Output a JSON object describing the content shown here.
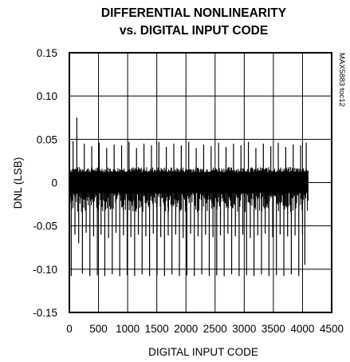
{
  "chart_data": {
    "type": "line",
    "title": "DIFFERENTIAL NONLINEARITY",
    "subtitle": "vs. DIGITAL INPUT CODE",
    "xlabel": "DIGITAL INPUT CODE",
    "ylabel": "DNL (LSB)",
    "figure_id": "MAX5883 toc12",
    "xlim": [
      0,
      4500
    ],
    "ylim": [
      -0.15,
      0.15
    ],
    "x_ticks": [
      0,
      500,
      1000,
      1500,
      2000,
      2500,
      3000,
      3500,
      4000,
      4500
    ],
    "x_tick_labels": [
      "0",
      "500",
      "1000",
      "1500",
      "2000",
      "2500",
      "3000",
      "3500",
      "4000",
      "4500"
    ],
    "y_ticks": [
      0.15,
      0.1,
      0.05,
      0,
      -0.05,
      -0.1,
      -0.15
    ],
    "y_tick_labels": [
      "0.15",
      "0.10",
      "0.05",
      "0",
      "-0.05",
      "-0.10",
      "-0.15"
    ],
    "grid": true,
    "series": [
      {
        "dense_band": {
          "x_range": [
            0,
            4095
          ],
          "y_range": [
            -0.012,
            0.012
          ]
        },
        "spikes": [
          {
            "x": 64,
            "y": 0.048
          },
          {
            "x": 128,
            "y": 0.075
          },
          {
            "x": 256,
            "y": 0.045
          },
          {
            "x": 384,
            "y": 0.042
          },
          {
            "x": 512,
            "y": 0.046
          },
          {
            "x": 640,
            "y": 0.04
          },
          {
            "x": 768,
            "y": 0.044
          },
          {
            "x": 896,
            "y": 0.043
          },
          {
            "x": 1024,
            "y": 0.047
          },
          {
            "x": 1152,
            "y": 0.04
          },
          {
            "x": 1280,
            "y": 0.045
          },
          {
            "x": 1408,
            "y": 0.043
          },
          {
            "x": 1536,
            "y": 0.047
          },
          {
            "x": 1664,
            "y": 0.041
          },
          {
            "x": 1792,
            "y": 0.045
          },
          {
            "x": 1920,
            "y": 0.043
          },
          {
            "x": 2048,
            "y": 0.047
          },
          {
            "x": 2176,
            "y": 0.04
          },
          {
            "x": 2304,
            "y": 0.044
          },
          {
            "x": 2432,
            "y": 0.042
          },
          {
            "x": 2560,
            "y": 0.046
          },
          {
            "x": 2688,
            "y": 0.041
          },
          {
            "x": 2816,
            "y": 0.045
          },
          {
            "x": 2944,
            "y": 0.043
          },
          {
            "x": 3072,
            "y": 0.047
          },
          {
            "x": 3200,
            "y": 0.04
          },
          {
            "x": 3328,
            "y": 0.045
          },
          {
            "x": 3456,
            "y": 0.042
          },
          {
            "x": 3584,
            "y": 0.046
          },
          {
            "x": 3712,
            "y": 0.041
          },
          {
            "x": 3840,
            "y": 0.044
          },
          {
            "x": 3968,
            "y": 0.043
          },
          {
            "x": 4064,
            "y": 0.046
          },
          {
            "x": 32,
            "y": -0.108
          },
          {
            "x": 96,
            "y": -0.06
          },
          {
            "x": 160,
            "y": -0.07
          },
          {
            "x": 224,
            "y": -0.105
          },
          {
            "x": 288,
            "y": -0.058
          },
          {
            "x": 352,
            "y": -0.108
          },
          {
            "x": 416,
            "y": -0.062
          },
          {
            "x": 480,
            "y": -0.107
          },
          {
            "x": 544,
            "y": -0.06
          },
          {
            "x": 608,
            "y": -0.108
          },
          {
            "x": 672,
            "y": -0.064
          },
          {
            "x": 736,
            "y": -0.106
          },
          {
            "x": 800,
            "y": -0.058
          },
          {
            "x": 864,
            "y": -0.108
          },
          {
            "x": 928,
            "y": -0.061
          },
          {
            "x": 992,
            "y": -0.107
          },
          {
            "x": 1056,
            "y": -0.063
          },
          {
            "x": 1120,
            "y": -0.108
          },
          {
            "x": 1184,
            "y": -0.06
          },
          {
            "x": 1248,
            "y": -0.106
          },
          {
            "x": 1312,
            "y": -0.062
          },
          {
            "x": 1376,
            "y": -0.108
          },
          {
            "x": 1440,
            "y": -0.059
          },
          {
            "x": 1504,
            "y": -0.107
          },
          {
            "x": 1568,
            "y": -0.063
          },
          {
            "x": 1632,
            "y": -0.108
          },
          {
            "x": 1696,
            "y": -0.061
          },
          {
            "x": 1760,
            "y": -0.106
          },
          {
            "x": 1824,
            "y": -0.06
          },
          {
            "x": 1888,
            "y": -0.108
          },
          {
            "x": 1952,
            "y": -0.064
          },
          {
            "x": 2016,
            "y": -0.107
          },
          {
            "x": 2080,
            "y": -0.059
          },
          {
            "x": 2144,
            "y": -0.108
          },
          {
            "x": 2208,
            "y": -0.062
          },
          {
            "x": 2272,
            "y": -0.106
          },
          {
            "x": 2336,
            "y": -0.06
          },
          {
            "x": 2400,
            "y": -0.108
          },
          {
            "x": 2464,
            "y": -0.063
          },
          {
            "x": 2528,
            "y": -0.107
          },
          {
            "x": 2592,
            "y": -0.061
          },
          {
            "x": 2656,
            "y": -0.108
          },
          {
            "x": 2720,
            "y": -0.059
          },
          {
            "x": 2784,
            "y": -0.106
          },
          {
            "x": 2848,
            "y": -0.062
          },
          {
            "x": 2912,
            "y": -0.108
          },
          {
            "x": 2976,
            "y": -0.06
          },
          {
            "x": 3040,
            "y": -0.107
          },
          {
            "x": 3104,
            "y": -0.064
          },
          {
            "x": 3168,
            "y": -0.108
          },
          {
            "x": 3232,
            "y": -0.061
          },
          {
            "x": 3296,
            "y": -0.106
          },
          {
            "x": 3360,
            "y": -0.059
          },
          {
            "x": 3424,
            "y": -0.108
          },
          {
            "x": 3488,
            "y": -0.063
          },
          {
            "x": 3552,
            "y": -0.107
          },
          {
            "x": 3616,
            "y": -0.06
          },
          {
            "x": 3680,
            "y": -0.108
          },
          {
            "x": 3744,
            "y": -0.062
          },
          {
            "x": 3808,
            "y": -0.106
          },
          {
            "x": 3872,
            "y": -0.061
          },
          {
            "x": 3936,
            "y": -0.108
          },
          {
            "x": 4000,
            "y": -0.06
          },
          {
            "x": 4040,
            "y": -0.095
          }
        ]
      }
    ]
  },
  "colors": {
    "trace": "#000000",
    "grid": "#000000",
    "background": "#ffffff"
  }
}
